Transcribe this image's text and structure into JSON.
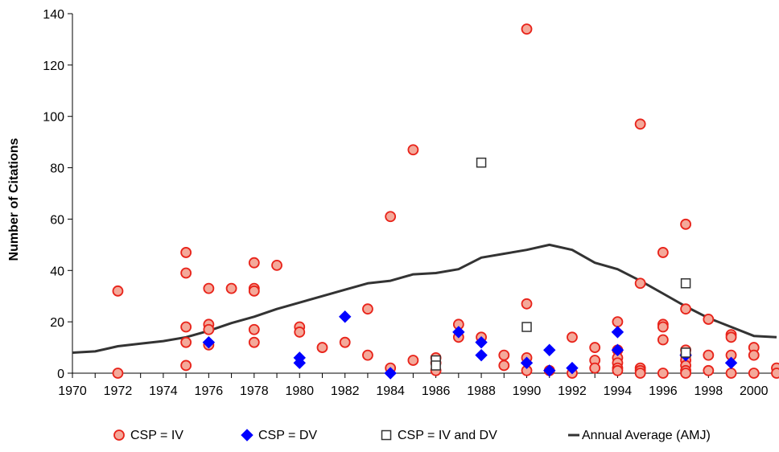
{
  "chart_data": {
    "type": "scatter",
    "title": "",
    "xlabel": "",
    "ylabel": "Number of Citations",
    "xlim": [
      1970,
      2001
    ],
    "ylim": [
      0,
      140
    ],
    "xticks": [
      1970,
      1972,
      1974,
      1976,
      1978,
      1980,
      1982,
      1984,
      1986,
      1988,
      1990,
      1992,
      1994,
      1996,
      1998,
      2000
    ],
    "yticks": [
      0,
      20,
      40,
      60,
      80,
      100,
      120,
      140
    ],
    "grid": false,
    "legend_position": "bottom",
    "series": [
      {
        "name": "CSP = IV",
        "marker": "circle",
        "fill": "#f4a99a",
        "stroke": "#e8231a",
        "points": [
          [
            1972,
            32
          ],
          [
            1972,
            0
          ],
          [
            1975,
            47
          ],
          [
            1975,
            39
          ],
          [
            1975,
            18
          ],
          [
            1975,
            12
          ],
          [
            1975,
            3
          ],
          [
            1976,
            33
          ],
          [
            1976,
            19
          ],
          [
            1976,
            17
          ],
          [
            1976,
            11
          ],
          [
            1977,
            33
          ],
          [
            1978,
            43
          ],
          [
            1978,
            33
          ],
          [
            1978,
            32
          ],
          [
            1978,
            17
          ],
          [
            1978,
            12
          ],
          [
            1979,
            42
          ],
          [
            1980,
            18
          ],
          [
            1980,
            16
          ],
          [
            1981,
            10
          ],
          [
            1982,
            12
          ],
          [
            1983,
            25
          ],
          [
            1983,
            7
          ],
          [
            1984,
            61
          ],
          [
            1984,
            2
          ],
          [
            1985,
            87
          ],
          [
            1985,
            5
          ],
          [
            1986,
            6
          ],
          [
            1986,
            4
          ],
          [
            1986,
            1
          ],
          [
            1987,
            19
          ],
          [
            1987,
            14
          ],
          [
            1988,
            14
          ],
          [
            1989,
            7
          ],
          [
            1989,
            3
          ],
          [
            1990,
            134
          ],
          [
            1990,
            27
          ],
          [
            1990,
            6
          ],
          [
            1990,
            1
          ],
          [
            1991,
            1
          ],
          [
            1992,
            14
          ],
          [
            1992,
            0
          ],
          [
            1993,
            10
          ],
          [
            1993,
            5
          ],
          [
            1993,
            2
          ],
          [
            1994,
            20
          ],
          [
            1994,
            9
          ],
          [
            1994,
            6
          ],
          [
            1994,
            4
          ],
          [
            1994,
            2
          ],
          [
            1994,
            1
          ],
          [
            1995,
            97
          ],
          [
            1995,
            35
          ],
          [
            1995,
            2
          ],
          [
            1995,
            1
          ],
          [
            1995,
            0
          ],
          [
            1996,
            47
          ],
          [
            1996,
            19
          ],
          [
            1996,
            18
          ],
          [
            1996,
            13
          ],
          [
            1996,
            0
          ],
          [
            1997,
            58
          ],
          [
            1997,
            25
          ],
          [
            1997,
            9
          ],
          [
            1997,
            7
          ],
          [
            1997,
            5
          ],
          [
            1997,
            3
          ],
          [
            1997,
            1
          ],
          [
            1997,
            0
          ],
          [
            1998,
            21
          ],
          [
            1998,
            7
          ],
          [
            1998,
            1
          ],
          [
            1999,
            15
          ],
          [
            1999,
            14
          ],
          [
            1999,
            7
          ],
          [
            1999,
            0
          ],
          [
            2000,
            10
          ],
          [
            2000,
            7
          ],
          [
            2000,
            0
          ],
          [
            2001,
            2
          ],
          [
            2001,
            0
          ]
        ]
      },
      {
        "name": "CSP = DV",
        "marker": "diamond",
        "fill": "#0000ff",
        "stroke": "#0000ff",
        "points": [
          [
            1976,
            12
          ],
          [
            1980,
            6
          ],
          [
            1980,
            4
          ],
          [
            1982,
            22
          ],
          [
            1984,
            0
          ],
          [
            1987,
            16
          ],
          [
            1988,
            12
          ],
          [
            1988,
            7
          ],
          [
            1990,
            4
          ],
          [
            1991,
            9
          ],
          [
            1991,
            1
          ],
          [
            1992,
            2
          ],
          [
            1994,
            16
          ],
          [
            1994,
            9
          ],
          [
            1997,
            7
          ],
          [
            1999,
            4
          ]
        ]
      },
      {
        "name": "CSP = IV and DV",
        "marker": "square",
        "fill": "#ffffff",
        "stroke": "#333333",
        "points": [
          [
            1986,
            5
          ],
          [
            1986,
            3
          ],
          [
            1988,
            82
          ],
          [
            1990,
            18
          ],
          [
            1997,
            35
          ],
          [
            1997,
            8
          ]
        ]
      }
    ],
    "line": {
      "name": "Annual Average (AMJ)",
      "color": "#333333",
      "x": [
        1970,
        1971,
        1972,
        1973,
        1974,
        1975,
        1976,
        1977,
        1978,
        1979,
        1980,
        1981,
        1982,
        1983,
        1984,
        1985,
        1986,
        1987,
        1988,
        1989,
        1990,
        1991,
        1992,
        1993,
        1994,
        1995,
        1996,
        1997,
        1998,
        1999,
        2000,
        2001
      ],
      "y": [
        8,
        8.5,
        10.5,
        11.5,
        12.5,
        14,
        16.5,
        19.5,
        22,
        25,
        27.5,
        30,
        32.5,
        35,
        36,
        38.5,
        39,
        40.5,
        45,
        46.5,
        48,
        50,
        48,
        43,
        40.5,
        36,
        31,
        26,
        21.5,
        18,
        14.5,
        14
      ]
    }
  }
}
